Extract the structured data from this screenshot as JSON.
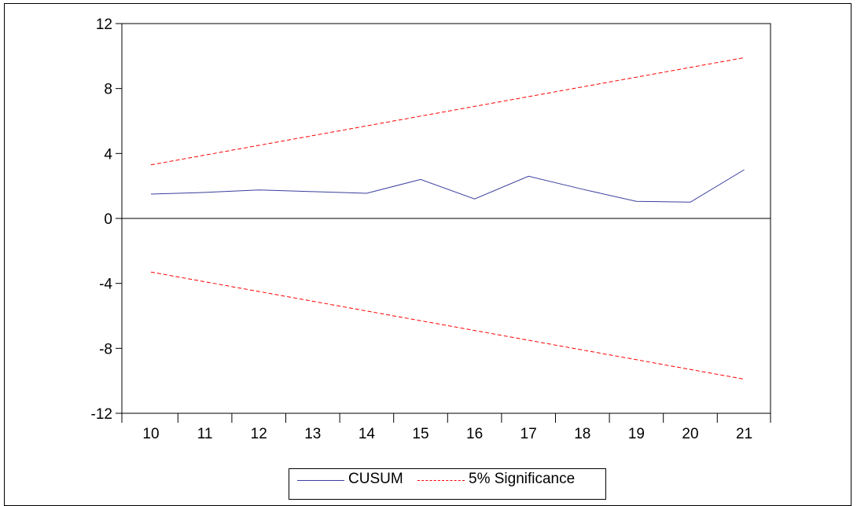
{
  "chart_data": {
    "type": "line",
    "title": "",
    "xlabel": "",
    "ylabel": "",
    "categories": [
      "10",
      "11",
      "12",
      "13",
      "14",
      "15",
      "16",
      "17",
      "18",
      "19",
      "20",
      "21"
    ],
    "x": [
      10,
      11,
      12,
      13,
      14,
      15,
      16,
      17,
      18,
      19,
      20,
      21
    ],
    "ylim": [
      -12,
      12
    ],
    "yticks": [
      12,
      8,
      4,
      0,
      -4,
      -8,
      -12
    ],
    "grid": false,
    "zero_line": true,
    "legend_position": "bottom-center",
    "series": [
      {
        "name": "CUSUM",
        "color": "#3a3f9e",
        "style": "solid",
        "values": [
          1.5,
          1.6,
          1.75,
          1.65,
          1.55,
          2.4,
          1.2,
          2.6,
          1.8,
          1.05,
          1.0,
          3.0
        ]
      },
      {
        "name": "5% Significance",
        "color": "#ff0000",
        "style": "dashed",
        "values": [
          3.3,
          3.9,
          4.5,
          5.1,
          5.7,
          6.3,
          6.9,
          7.5,
          8.1,
          8.7,
          9.3,
          9.9
        ]
      },
      {
        "name": "5% Significance",
        "color": "#ff0000",
        "style": "dashed",
        "values": [
          -3.3,
          -3.9,
          -4.5,
          -5.1,
          -5.7,
          -6.3,
          -6.9,
          -7.5,
          -8.1,
          -8.7,
          -9.3,
          -9.9
        ]
      }
    ],
    "legend": [
      {
        "label": "CUSUM",
        "color": "#3a3f9e",
        "style": "solid"
      },
      {
        "label": "5% Significance",
        "color": "#ff0000",
        "style": "dashed"
      }
    ]
  }
}
